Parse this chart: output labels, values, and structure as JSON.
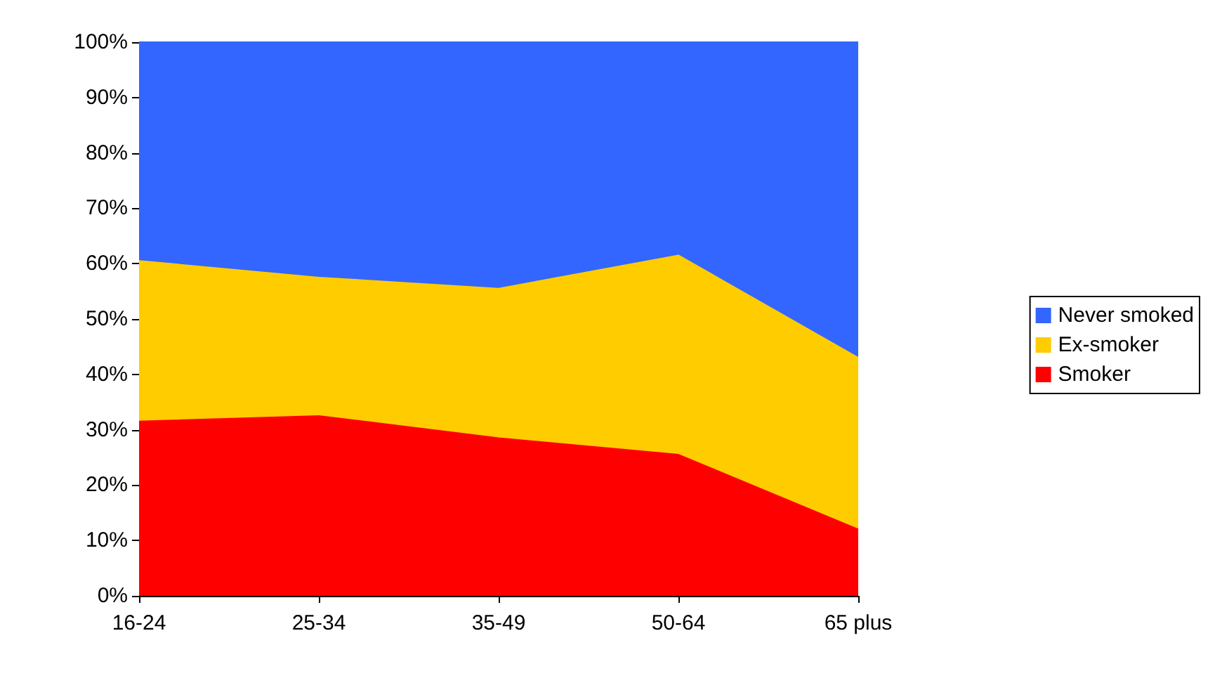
{
  "chart_data": {
    "type": "area",
    "stacked": true,
    "categories": [
      "16-24",
      "25-34",
      "35-49",
      "50-64",
      "65 plus"
    ],
    "series": [
      {
        "name": "Smoker",
        "color": "#ff0000",
        "values": [
          31.5,
          32.5,
          28.5,
          25.5,
          12
        ]
      },
      {
        "name": "Ex-smoker",
        "color": "#ffcc00",
        "values": [
          29,
          25,
          27,
          36,
          31
        ]
      },
      {
        "name": "Never smoked",
        "color": "#3366ff",
        "values": [
          39.5,
          42.5,
          44.5,
          38.5,
          57
        ]
      }
    ],
    "ylim": [
      0,
      100
    ],
    "yticks": [
      {
        "value": 0,
        "label": "0%"
      },
      {
        "value": 10,
        "label": "10%"
      },
      {
        "value": 20,
        "label": "20%"
      },
      {
        "value": 30,
        "label": "30%"
      },
      {
        "value": 40,
        "label": "40%"
      },
      {
        "value": 50,
        "label": "50%"
      },
      {
        "value": 60,
        "label": "60%"
      },
      {
        "value": 70,
        "label": "70%"
      },
      {
        "value": 80,
        "label": "80%"
      },
      {
        "value": 90,
        "label": "90%"
      },
      {
        "value": 100,
        "label": "100%"
      }
    ],
    "grid": false,
    "legend": "right",
    "marker": "none"
  }
}
